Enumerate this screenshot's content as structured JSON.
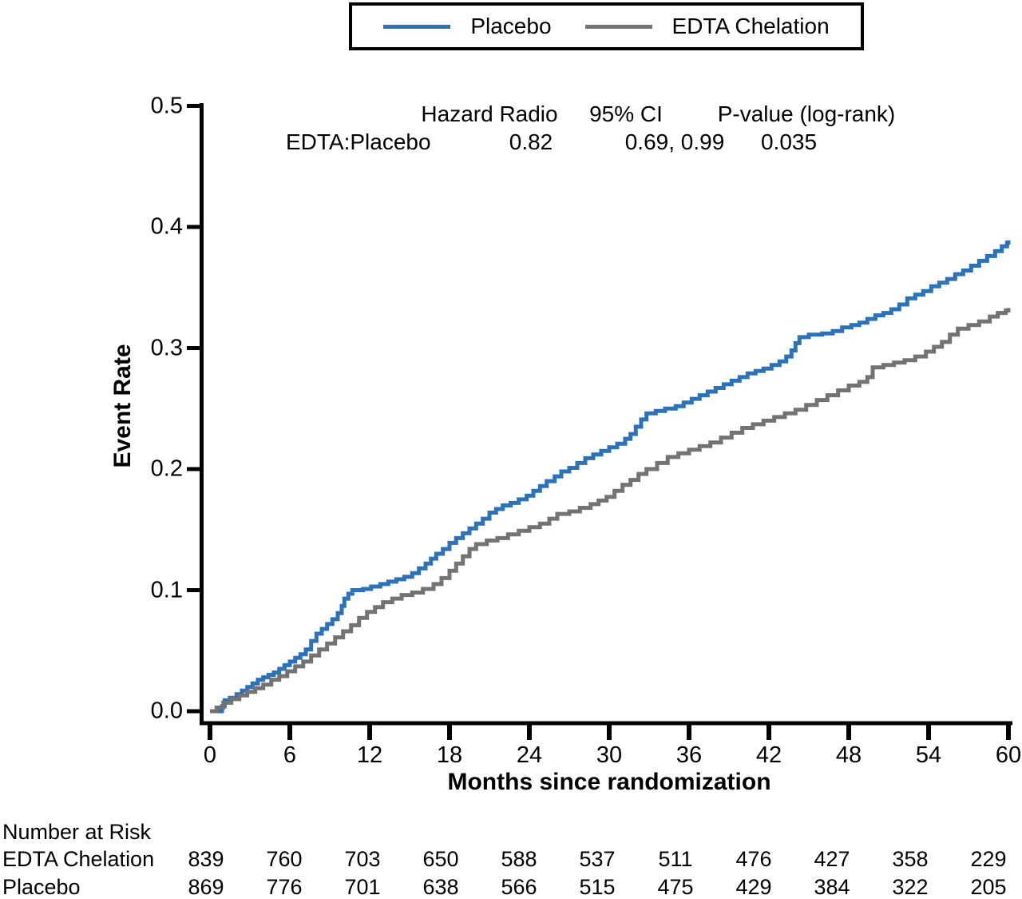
{
  "legend": {
    "items": [
      {
        "label": "Placebo",
        "color": "#2B72B8"
      },
      {
        "label": "EDTA Chelation",
        "color": "#737373"
      }
    ]
  },
  "stats": {
    "col_hazard": "Hazard Radio",
    "col_ci": "95% CI",
    "col_p": "P-value (log-rank)",
    "row_label": "EDTA:Placebo",
    "hazard_ratio": "0.82",
    "ci": "0.69, 0.99",
    "p_value": "0.035"
  },
  "chart_data": {
    "type": "line",
    "subtype": "kaplan-meier-step",
    "title": "",
    "xlabel": "Months since randomization",
    "ylabel": "Event Rate",
    "xlim": [
      0,
      60
    ],
    "ylim": [
      0.0,
      0.5
    ],
    "xticks": [
      0,
      6,
      12,
      18,
      24,
      30,
      36,
      42,
      48,
      54,
      60
    ],
    "yticks": [
      "0.0",
      "0.1",
      "0.2",
      "0.3",
      "0.4",
      "0.5"
    ],
    "grid": false,
    "legend_position": "top-center",
    "series": [
      {
        "name": "Placebo",
        "color": "#2B72B8",
        "points": [
          [
            0,
            0
          ],
          [
            0.9,
            0.004
          ],
          [
            1.1,
            0.009
          ],
          [
            1.5,
            0.011
          ],
          [
            2,
            0.014
          ],
          [
            2.4,
            0.017
          ],
          [
            2.8,
            0.02
          ],
          [
            3.2,
            0.023
          ],
          [
            3.6,
            0.026
          ],
          [
            4,
            0.028
          ],
          [
            4.4,
            0.03
          ],
          [
            4.8,
            0.032
          ],
          [
            5.2,
            0.035
          ],
          [
            5.6,
            0.038
          ],
          [
            6,
            0.041
          ],
          [
            6.4,
            0.044
          ],
          [
            6.8,
            0.047
          ],
          [
            7.2,
            0.051
          ],
          [
            7.6,
            0.058
          ],
          [
            8,
            0.064
          ],
          [
            8.4,
            0.068
          ],
          [
            8.8,
            0.072
          ],
          [
            9.2,
            0.076
          ],
          [
            9.6,
            0.081
          ],
          [
            9.9,
            0.087
          ],
          [
            10.1,
            0.093
          ],
          [
            10.4,
            0.097
          ],
          [
            10.7,
            0.1
          ],
          [
            11.5,
            0.101
          ],
          [
            12.1,
            0.103
          ],
          [
            12.8,
            0.105
          ],
          [
            13.4,
            0.107
          ],
          [
            14,
            0.109
          ],
          [
            14.6,
            0.111
          ],
          [
            15.2,
            0.114
          ],
          [
            15.7,
            0.118
          ],
          [
            16.2,
            0.122
          ],
          [
            16.6,
            0.126
          ],
          [
            17,
            0.13
          ],
          [
            17.5,
            0.134
          ],
          [
            18,
            0.139
          ],
          [
            18.5,
            0.143
          ],
          [
            19,
            0.147
          ],
          [
            19.5,
            0.151
          ],
          [
            20,
            0.155
          ],
          [
            20.5,
            0.159
          ],
          [
            21,
            0.164
          ],
          [
            21.5,
            0.167
          ],
          [
            22,
            0.17
          ],
          [
            22.6,
            0.172
          ],
          [
            23.2,
            0.175
          ],
          [
            23.8,
            0.178
          ],
          [
            24.3,
            0.182
          ],
          [
            24.8,
            0.186
          ],
          [
            25.3,
            0.19
          ],
          [
            25.9,
            0.194
          ],
          [
            26.4,
            0.198
          ],
          [
            27,
            0.201
          ],
          [
            27.6,
            0.205
          ],
          [
            28.2,
            0.209
          ],
          [
            28.8,
            0.212
          ],
          [
            29.4,
            0.215
          ],
          [
            30,
            0.218
          ],
          [
            30.6,
            0.221
          ],
          [
            31.2,
            0.225
          ],
          [
            31.6,
            0.229
          ],
          [
            32,
            0.235
          ],
          [
            32.4,
            0.241
          ],
          [
            32.8,
            0.246
          ],
          [
            33.5,
            0.248
          ],
          [
            34.2,
            0.25
          ],
          [
            35,
            0.252
          ],
          [
            35.6,
            0.255
          ],
          [
            36.2,
            0.258
          ],
          [
            36.8,
            0.261
          ],
          [
            37.4,
            0.264
          ],
          [
            38,
            0.267
          ],
          [
            38.6,
            0.27
          ],
          [
            39.2,
            0.273
          ],
          [
            39.8,
            0.276
          ],
          [
            40.4,
            0.279
          ],
          [
            41,
            0.281
          ],
          [
            41.6,
            0.283
          ],
          [
            42.2,
            0.286
          ],
          [
            42.8,
            0.289
          ],
          [
            43.3,
            0.293
          ],
          [
            43.7,
            0.298
          ],
          [
            44,
            0.304
          ],
          [
            44.3,
            0.309
          ],
          [
            45,
            0.311
          ],
          [
            46,
            0.312
          ],
          [
            46.8,
            0.314
          ],
          [
            47.5,
            0.317
          ],
          [
            48.2,
            0.319
          ],
          [
            48.8,
            0.321
          ],
          [
            49.4,
            0.324
          ],
          [
            50,
            0.327
          ],
          [
            50.6,
            0.329
          ],
          [
            51.2,
            0.332
          ],
          [
            51.8,
            0.336
          ],
          [
            52.4,
            0.341
          ],
          [
            53,
            0.344
          ],
          [
            53.6,
            0.347
          ],
          [
            54.2,
            0.351
          ],
          [
            54.8,
            0.354
          ],
          [
            55.4,
            0.357
          ],
          [
            56,
            0.361
          ],
          [
            56.6,
            0.364
          ],
          [
            57.2,
            0.368
          ],
          [
            57.8,
            0.372
          ],
          [
            58.4,
            0.376
          ],
          [
            59,
            0.38
          ],
          [
            59.5,
            0.384
          ],
          [
            59.9,
            0.387
          ],
          [
            60,
            0.389
          ]
        ]
      },
      {
        "name": "EDTA Chelation",
        "color": "#737373",
        "points": [
          [
            0,
            0
          ],
          [
            0.5,
            0.003
          ],
          [
            1,
            0.007
          ],
          [
            1.6,
            0.01
          ],
          [
            2.2,
            0.013
          ],
          [
            2.8,
            0.016
          ],
          [
            3.4,
            0.019
          ],
          [
            4,
            0.022
          ],
          [
            4.6,
            0.026
          ],
          [
            5.2,
            0.029
          ],
          [
            5.8,
            0.033
          ],
          [
            6.4,
            0.037
          ],
          [
            7,
            0.041
          ],
          [
            7.6,
            0.046
          ],
          [
            8.2,
            0.051
          ],
          [
            8.8,
            0.056
          ],
          [
            9.4,
            0.061
          ],
          [
            10,
            0.066
          ],
          [
            10.6,
            0.071
          ],
          [
            11.2,
            0.077
          ],
          [
            11.8,
            0.082
          ],
          [
            12.4,
            0.086
          ],
          [
            13,
            0.09
          ],
          [
            13.7,
            0.093
          ],
          [
            14.4,
            0.096
          ],
          [
            15.2,
            0.098
          ],
          [
            16,
            0.101
          ],
          [
            16.8,
            0.105
          ],
          [
            17.4,
            0.11
          ],
          [
            18,
            0.116
          ],
          [
            18.5,
            0.122
          ],
          [
            19,
            0.128
          ],
          [
            19.5,
            0.134
          ],
          [
            20,
            0.138
          ],
          [
            20.8,
            0.141
          ],
          [
            21.6,
            0.143
          ],
          [
            22.4,
            0.146
          ],
          [
            23.2,
            0.149
          ],
          [
            24,
            0.152
          ],
          [
            24.8,
            0.155
          ],
          [
            25.5,
            0.159
          ],
          [
            26.1,
            0.163
          ],
          [
            27,
            0.165
          ],
          [
            27.8,
            0.168
          ],
          [
            28.6,
            0.171
          ],
          [
            29.2,
            0.174
          ],
          [
            29.8,
            0.177
          ],
          [
            30.4,
            0.182
          ],
          [
            31,
            0.187
          ],
          [
            31.6,
            0.191
          ],
          [
            32.2,
            0.196
          ],
          [
            32.8,
            0.2
          ],
          [
            33.6,
            0.205
          ],
          [
            34.4,
            0.21
          ],
          [
            35.2,
            0.213
          ],
          [
            36,
            0.216
          ],
          [
            36.8,
            0.219
          ],
          [
            37.6,
            0.222
          ],
          [
            38.4,
            0.226
          ],
          [
            39.2,
            0.23
          ],
          [
            40,
            0.234
          ],
          [
            40.8,
            0.237
          ],
          [
            41.6,
            0.24
          ],
          [
            42.4,
            0.243
          ],
          [
            43.2,
            0.246
          ],
          [
            44,
            0.249
          ],
          [
            44.8,
            0.253
          ],
          [
            45.6,
            0.257
          ],
          [
            46.4,
            0.261
          ],
          [
            47.2,
            0.265
          ],
          [
            48,
            0.269
          ],
          [
            48.8,
            0.272
          ],
          [
            49.4,
            0.276
          ],
          [
            49.8,
            0.284
          ],
          [
            50.6,
            0.286
          ],
          [
            51.4,
            0.288
          ],
          [
            52.2,
            0.29
          ],
          [
            53,
            0.293
          ],
          [
            53.8,
            0.297
          ],
          [
            54.4,
            0.301
          ],
          [
            55,
            0.305
          ],
          [
            55.6,
            0.311
          ],
          [
            56.2,
            0.316
          ],
          [
            57,
            0.319
          ],
          [
            57.8,
            0.322
          ],
          [
            58.6,
            0.326
          ],
          [
            59.2,
            0.329
          ],
          [
            59.8,
            0.331
          ],
          [
            60,
            0.333
          ]
        ]
      }
    ]
  },
  "risk_table": {
    "title": "Number at Risk",
    "rows": [
      {
        "label": "EDTA Chelation",
        "values": [
          839,
          760,
          703,
          650,
          588,
          537,
          511,
          476,
          427,
          358,
          229
        ]
      },
      {
        "label": "Placebo",
        "values": [
          869,
          776,
          701,
          638,
          566,
          515,
          475,
          429,
          384,
          322,
          205
        ]
      }
    ]
  }
}
